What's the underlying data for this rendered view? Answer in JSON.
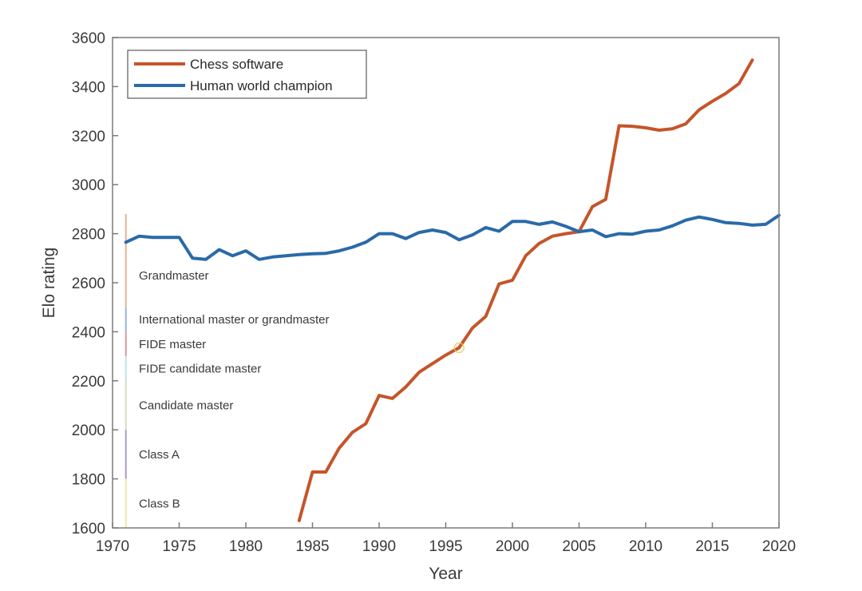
{
  "chart_data": {
    "type": "line",
    "title": "",
    "xlabel": "Year",
    "ylabel": "Elo rating",
    "xlim": [
      1970,
      2020
    ],
    "ylim": [
      1600,
      3600
    ],
    "xticks": [
      1970,
      1975,
      1980,
      1985,
      1990,
      1995,
      2000,
      2005,
      2010,
      2015,
      2020
    ],
    "yticks": [
      1600,
      1800,
      2000,
      2200,
      2400,
      2600,
      2800,
      3000,
      3200,
      3400,
      3600
    ],
    "grid": false,
    "legend_position": "top-left",
    "series": [
      {
        "name": "Chess software",
        "color": "#c5552a",
        "x": [
          1984,
          1985,
          1986,
          1987,
          1988,
          1989,
          1990,
          1991,
          1992,
          1993,
          1994,
          1995,
          1996,
          1997,
          1998,
          1999,
          2000,
          2001,
          2002,
          2003,
          2004,
          2005,
          2006,
          2007,
          2008,
          2009,
          2010,
          2011,
          2012,
          2013,
          2014,
          2015,
          2016,
          2017,
          2018
        ],
        "values": [
          1630,
          1828,
          1828,
          1925,
          1990,
          2025,
          2140,
          2128,
          2175,
          2235,
          2270,
          2305,
          2335,
          2415,
          2463,
          2595,
          2610,
          2710,
          2760,
          2790,
          2800,
          2808,
          2910,
          2940,
          3240,
          3238,
          3232,
          3222,
          3228,
          3248,
          3305,
          3340,
          3372,
          3412,
          3508
        ]
      },
      {
        "name": "Human world champion",
        "color": "#2a6aa8",
        "x": [
          1971,
          1972,
          1973,
          1974,
          1975,
          1976,
          1977,
          1978,
          1979,
          1980,
          1981,
          1982,
          1983,
          1984,
          1985,
          1986,
          1987,
          1988,
          1989,
          1990,
          1991,
          1992,
          1993,
          1994,
          1995,
          1996,
          1997,
          1998,
          1999,
          2000,
          2001,
          2002,
          2003,
          2004,
          2005,
          2006,
          2007,
          2008,
          2009,
          2010,
          2011,
          2012,
          2013,
          2014,
          2015,
          2016,
          2017,
          2018,
          2019,
          2020
        ],
        "values": [
          2765,
          2790,
          2785,
          2785,
          2785,
          2700,
          2695,
          2735,
          2710,
          2730,
          2695,
          2705,
          2710,
          2715,
          2718,
          2720,
          2730,
          2745,
          2765,
          2800,
          2800,
          2780,
          2805,
          2815,
          2805,
          2775,
          2795,
          2825,
          2810,
          2850,
          2850,
          2838,
          2848,
          2830,
          2808,
          2815,
          2788,
          2800,
          2798,
          2810,
          2815,
          2832,
          2855,
          2868,
          2858,
          2845,
          2842,
          2835,
          2838,
          2875
        ]
      }
    ],
    "annotations": {
      "marker": {
        "year": 1996,
        "value": 2335,
        "color": "#e8c84a"
      },
      "rating_bands": {
        "year": 1971,
        "bands": [
          {
            "label": "Grandmaster",
            "from": 2500,
            "to": 2880,
            "color": "#e8b490"
          },
          {
            "label": "International master or grandmaster",
            "from": 2400,
            "to": 2500,
            "color": "#8fb6d8"
          },
          {
            "label": "FIDE master",
            "from": 2300,
            "to": 2400,
            "color": "#d79a9a"
          },
          {
            "label": "FIDE candidate master",
            "from": 2200,
            "to": 2300,
            "color": "#bfe2f0"
          },
          {
            "label": "Candidate master",
            "from": 2000,
            "to": 2200,
            "color": "#d7dcb8"
          },
          {
            "label": "Class A",
            "from": 1800,
            "to": 2000,
            "color": "#a99ac8"
          },
          {
            "label": "Class B",
            "from": 1600,
            "to": 1800,
            "color": "#f2e6a8"
          }
        ]
      }
    }
  }
}
